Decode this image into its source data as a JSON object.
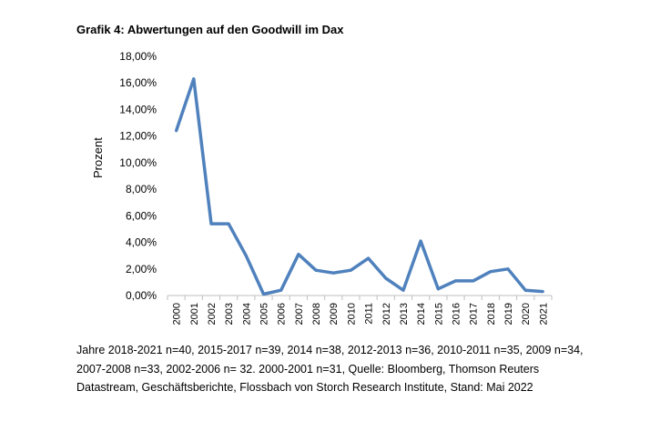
{
  "figure": {
    "title": "Grafik 4: Abwertungen auf den Goodwill im Dax",
    "note": "Jahre 2018-2021 n=40, 2015-2017 n=39, 2014 n=38, 2012-2013 n=36, 2010-2011 n=35, 2009 n=34, 2007-2008 n=33, 2002-2006 n= 32. 2000-2001 n=31, Quelle: Bloomberg, Thomson Reuters Datastream, Geschäftsberichte, Flossbach von Storch Research Institute, Stand: Mai 2022"
  },
  "chart_data": {
    "type": "line",
    "title": "Grafik 4: Abwertungen auf den Goodwill im Dax",
    "xlabel": "",
    "ylabel": "Prozent",
    "categories": [
      "2000",
      "2001",
      "2002",
      "2003",
      "2004",
      "2005",
      "2006",
      "2007",
      "2008",
      "2009",
      "2010",
      "2011",
      "2012",
      "2013",
      "2014",
      "2015",
      "2016",
      "2017",
      "2018",
      "2019",
      "2020",
      "2021"
    ],
    "series": [
      {
        "values": [
          12.4,
          16.3,
          5.4,
          5.4,
          3.0,
          0.1,
          0.4,
          3.1,
          1.9,
          1.7,
          1.9,
          2.8,
          1.3,
          0.4,
          4.1,
          0.5,
          1.1,
          1.1,
          1.8,
          2.0,
          0.4,
          0.3
        ]
      }
    ],
    "ylim": [
      0,
      18
    ],
    "yticks": [
      "0,00%",
      "2,00%",
      "4,00%",
      "6,00%",
      "8,00%",
      "10,00%",
      "12,00%",
      "14,00%",
      "16,00%",
      "18,00%"
    ],
    "grid": false,
    "legend": "none",
    "line_color": "#4f81bd"
  }
}
